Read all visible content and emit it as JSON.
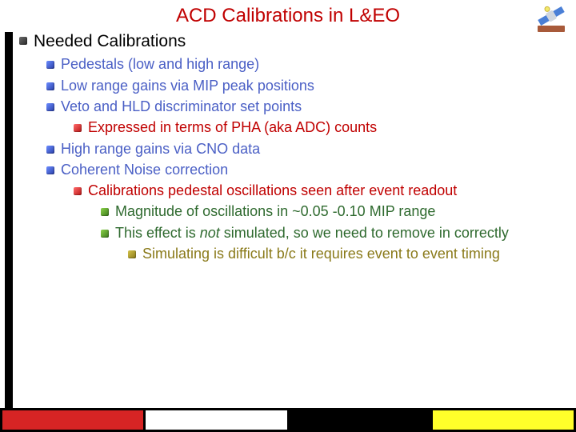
{
  "title": {
    "text": "ACD Calibrations in L&EO",
    "color": "#c00000",
    "fontsize": 24
  },
  "bullet_palette": {
    "lvl0": [
      "#6a6a6a",
      "#2a2a2a"
    ],
    "lvl1": [
      "#6b8cff",
      "#2a3fa8"
    ],
    "lvl2": [
      "#ff6b6b",
      "#b81414"
    ],
    "lvl3": [
      "#8bd14a",
      "#3a7a1a"
    ],
    "lvl4": [
      "#d4c24a",
      "#8a7a1a"
    ]
  },
  "text_colors": {
    "lvl0": "#000000",
    "lvl1": "#4a5fc5",
    "lvl2": "#c00000",
    "lvl3": "#2f6a2f",
    "lvl4": "#8a7a1a"
  },
  "items": [
    {
      "level": 0,
      "text": "Needed Calibrations"
    },
    {
      "level": 1,
      "text": "Pedestals (low and high range)"
    },
    {
      "level": 1,
      "text": "Low range gains via MIP peak positions"
    },
    {
      "level": 1,
      "text": "Veto and HLD discriminator set points"
    },
    {
      "level": 2,
      "text": "Expressed in terms of PHA (aka ADC) counts"
    },
    {
      "level": 1,
      "text": "High range gains via CNO data"
    },
    {
      "level": 1,
      "text": "Coherent Noise correction"
    },
    {
      "level": 2,
      "text": "Calibrations pedestal oscillations seen after event readout"
    },
    {
      "level": 3,
      "text": "Magnitude of oscillations in ~0.05 -0.10 MIP range"
    },
    {
      "level": 3,
      "pre": "This effect is ",
      "em": "not",
      "post": " simulated, so we need to remove in correctly"
    },
    {
      "level": 4,
      "text": "Simulating is difficult b/c it requires event to event timing"
    }
  ],
  "footer_colors": [
    "#d62424",
    "#ffffff",
    "#000000",
    "#ffff2a"
  ],
  "left_bar_color": "#000000",
  "background_color": "#ffffff"
}
